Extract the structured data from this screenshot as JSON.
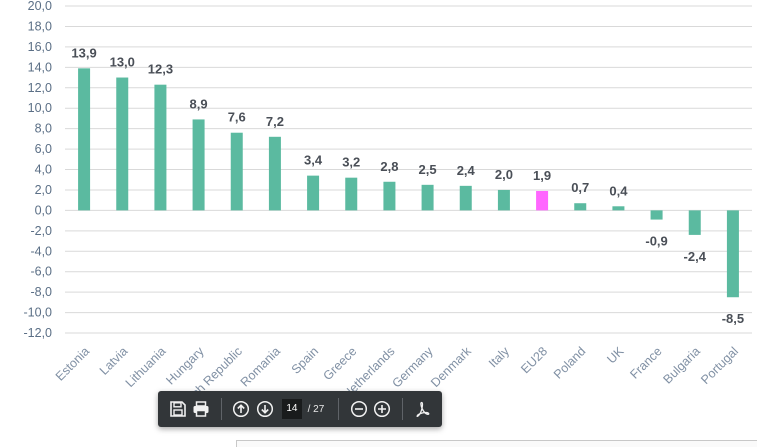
{
  "chart_data": {
    "type": "bar",
    "categories": [
      "Estonia",
      "Latvia",
      "Lithuania",
      "Hungary",
      "Czech Republic",
      "Romania",
      "Spain",
      "Greece",
      "Netherlands",
      "Germany",
      "Denmark",
      "Italy",
      "EU28",
      "Poland",
      "UK",
      "France",
      "Bulgaria",
      "Portugal"
    ],
    "values": [
      13.9,
      13.0,
      12.3,
      8.9,
      7.6,
      7.2,
      3.4,
      3.2,
      2.8,
      2.5,
      2.4,
      2.0,
      1.9,
      0.7,
      0.4,
      -0.9,
      -2.4,
      -8.5
    ],
    "data_labels": [
      "13,9",
      "13,0",
      "12,3",
      "8,9",
      "7,6",
      "7,2",
      "3,4",
      "3,2",
      "2,8",
      "2,5",
      "2,4",
      "2,0",
      "1,9",
      "0,7",
      "0,4",
      "-0,9",
      "-2,4",
      "-8,5"
    ],
    "highlight_category": "EU28",
    "ylim": [
      -12,
      20
    ],
    "ytick_step": 2,
    "ytick_labels": [
      "20,0",
      "18,0",
      "16,0",
      "14,0",
      "12,0",
      "10,0",
      "8,0",
      "6,0",
      "4,0",
      "2,0",
      "0,0",
      "-2,0",
      "-4,0",
      "-6,0",
      "-8,0",
      "-10,0",
      "-12,0"
    ],
    "grid": true,
    "colors": {
      "bar": "#5bbaa0",
      "highlight": "#ff66ff",
      "grid": "#d9d9d9"
    }
  },
  "toolbar": {
    "current_page": "14",
    "total_pages": "/ 27",
    "icons": [
      "save-icon",
      "print-icon",
      "arrow-up-icon",
      "arrow-down-icon",
      "zoom-out-icon",
      "zoom-in-icon",
      "acrobat-icon"
    ]
  }
}
